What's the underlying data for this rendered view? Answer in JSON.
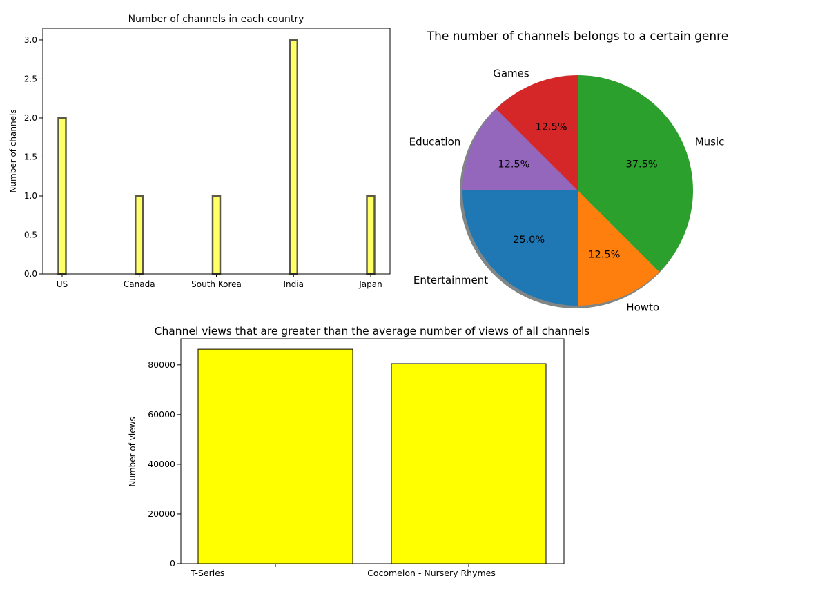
{
  "chart_data": [
    {
      "type": "bar",
      "title": "Number of channels in each country",
      "xlabel": "",
      "ylabel": "Number of channels",
      "categories": [
        "US",
        "Canada",
        "South Korea",
        "India",
        "Japan"
      ],
      "values": [
        2,
        1,
        1,
        3,
        1
      ],
      "ylim": [
        0,
        3.15
      ],
      "yticks": [
        "0.0",
        "0.5",
        "1.0",
        "1.5",
        "2.0",
        "2.5",
        "3.0"
      ],
      "ytick_values": [
        0,
        0.5,
        1.0,
        1.5,
        2.0,
        2.5,
        3.0
      ],
      "bar_color": "#ffff66",
      "edge_color": "#5a5a46",
      "grid": false
    },
    {
      "type": "pie",
      "title": "The number of channels belongs to a certain genre",
      "slices": [
        {
          "label": "Music",
          "value": 37.5,
          "pct": "37.5%",
          "color": "#2ca02c"
        },
        {
          "label": "Howto",
          "value": 12.5,
          "pct": "12.5%",
          "color": "#ff7f0e"
        },
        {
          "label": "Entertainment",
          "value": 25.0,
          "pct": "25.0%",
          "color": "#1f77b4"
        },
        {
          "label": "Education",
          "value": 12.5,
          "pct": "12.5%",
          "color": "#9467bd"
        },
        {
          "label": "Games",
          "value": 12.5,
          "pct": "12.5%",
          "color": "#d62728"
        }
      ],
      "shadow": true
    },
    {
      "type": "bar",
      "title": "Channel views that are greater than the average number of views of all channels",
      "xlabel": "",
      "ylabel": "Number of views",
      "categories": [
        "T-Series",
        "Cocomelon - Nursery Rhymes"
      ],
      "values": [
        86300,
        80500
      ],
      "ylim": [
        0,
        90500
      ],
      "yticks": [
        "0",
        "20000",
        "40000",
        "60000",
        "80000"
      ],
      "ytick_values": [
        0,
        20000,
        40000,
        60000,
        80000
      ],
      "bar_color": "#ffff00",
      "edge_color": "#000000",
      "grid": false
    }
  ]
}
